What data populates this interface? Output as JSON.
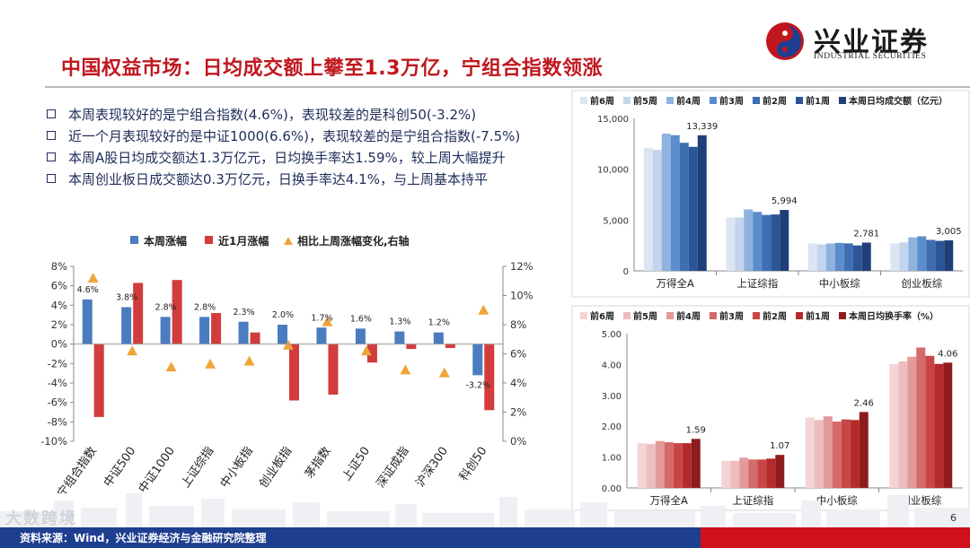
{
  "header": {
    "title": "中国权益市场：日均成交额上攀至1.3万亿，宁组合指数领涨",
    "logo_cn": "兴业证券",
    "logo_en": "INDUSTRIAL SECURITIES"
  },
  "bullets": [
    "本周表现较好的是宁组合指数(4.6%)，表现较差的是科创50(-3.2%)",
    "近一个月表现较好的是中证1000(6.6%)，表现较差的是宁组合指数(-7.5%)",
    "本周A股日均成交额达1.3万亿元，日均换手率达1.59%，较上周大幅提升",
    "本周创业板日成交额达0.3万亿元，日换手率达4.1%，与上周基本持平"
  ],
  "footer": {
    "source": "资料来源：Wind，兴业证券经济与金融研究院整理",
    "page": "6",
    "watermark": "大数跨境"
  },
  "colors": {
    "accent_red": "#c0171f",
    "weekly_blue": "#4a7cc0",
    "monthly_red": "#d23c3c",
    "triangle_orange": "#f0a43c",
    "footer_blue": "#1e3f8f"
  },
  "chart_data": [
    {
      "type": "bar",
      "legend": [
        "本周涨幅",
        "近1月涨幅",
        "相比上周涨幅变化,右轴"
      ],
      "categories": [
        "宁组合指数",
        "中证500",
        "中证1000",
        "上证综指",
        "中小板指",
        "创业板指",
        "茅指数",
        "上证50",
        "深证成指",
        "沪深300",
        "科创50"
      ],
      "series": [
        {
          "name": "本周涨幅",
          "kind": "bar",
          "axis": "left",
          "values": [
            4.6,
            3.8,
            2.8,
            2.8,
            2.3,
            2.0,
            1.7,
            1.6,
            1.3,
            1.2,
            -3.2
          ]
        },
        {
          "name": "近1月涨幅",
          "kind": "bar",
          "axis": "left",
          "values": [
            -7.5,
            6.3,
            6.6,
            3.2,
            1.2,
            -5.8,
            -5.2,
            -1.9,
            -0.5,
            -0.4,
            -6.8
          ]
        },
        {
          "name": "相比上周涨幅变化,右轴",
          "kind": "triangle",
          "axis": "right",
          "values": [
            11.2,
            6.2,
            5.1,
            5.3,
            5.5,
            6.6,
            8.2,
            6.2,
            4.9,
            4.7,
            9.0
          ]
        }
      ],
      "data_labels": [
        "4.6%",
        "3.8%",
        "2.8%",
        "2.8%",
        "2.3%",
        "2.0%",
        "1.7%",
        "1.6%",
        "1.3%",
        "1.2%",
        "-3.2%"
      ],
      "ylim": [
        -10,
        8
      ],
      "yticks": [
        "-10%",
        "-8%",
        "-6%",
        "-4%",
        "-2%",
        "0%",
        "2%",
        "4%",
        "6%",
        "8%"
      ],
      "y2lim": [
        0,
        12
      ],
      "y2ticks": [
        "0%",
        "2%",
        "4%",
        "6%",
        "8%",
        "10%",
        "12%"
      ],
      "legend_position": "top"
    },
    {
      "type": "bar",
      "legend": [
        "前6周",
        "前5周",
        "前4周",
        "前3周",
        "前2周",
        "前1周",
        "本周日均成交额（亿元）"
      ],
      "categories": [
        "万得全A",
        "上证综指",
        "中小板综",
        "创业板综"
      ],
      "series": [
        {
          "name": "前6周",
          "values": [
            12100,
            5250,
            2700,
            2700
          ]
        },
        {
          "name": "前5周",
          "values": [
            11900,
            5250,
            2600,
            2800
          ]
        },
        {
          "name": "前4周",
          "values": [
            13500,
            6050,
            2700,
            3300
          ]
        },
        {
          "name": "前3周",
          "values": [
            13350,
            5800,
            2750,
            3400
          ]
        },
        {
          "name": "前2周",
          "values": [
            12600,
            5500,
            2700,
            3050
          ]
        },
        {
          "name": "前1周",
          "values": [
            12200,
            5550,
            2500,
            2950
          ]
        },
        {
          "name": "本周日均成交额（亿元）",
          "values": [
            13339,
            5994,
            2781,
            3005
          ]
        }
      ],
      "data_labels": [
        "13,339",
        "5,994",
        "2,781",
        "3,005"
      ],
      "ylim": [
        0,
        15000
      ],
      "yticks": [
        "0",
        "5,000",
        "10,000",
        "15,000"
      ],
      "legend_position": "top"
    },
    {
      "type": "bar",
      "legend": [
        "前6周",
        "前5周",
        "前4周",
        "前3周",
        "前2周",
        "前1周",
        "本周日均换手率（%）"
      ],
      "categories": [
        "万得全A",
        "上证综指",
        "中小板综",
        "创业板综"
      ],
      "series": [
        {
          "name": "前6周",
          "values": [
            1.45,
            0.88,
            2.28,
            4.02
          ]
        },
        {
          "name": "前5周",
          "values": [
            1.42,
            0.88,
            2.2,
            4.1
          ]
        },
        {
          "name": "前4周",
          "values": [
            1.52,
            0.98,
            2.32,
            4.25
          ]
        },
        {
          "name": "前3周",
          "values": [
            1.48,
            0.92,
            2.15,
            4.55
          ]
        },
        {
          "name": "前2周",
          "values": [
            1.45,
            0.92,
            2.22,
            4.28
          ]
        },
        {
          "name": "前1周",
          "values": [
            1.45,
            0.95,
            2.2,
            4.02
          ]
        },
        {
          "name": "本周日均换手率（%）",
          "values": [
            1.59,
            1.07,
            2.46,
            4.06
          ]
        }
      ],
      "data_labels": [
        "1.59",
        "1.07",
        "2.46",
        "4.06"
      ],
      "ylim": [
        0,
        5
      ],
      "yticks": [
        "0.00",
        "1.00",
        "2.00",
        "3.00",
        "4.00",
        "5.00"
      ],
      "legend_position": "top"
    }
  ]
}
